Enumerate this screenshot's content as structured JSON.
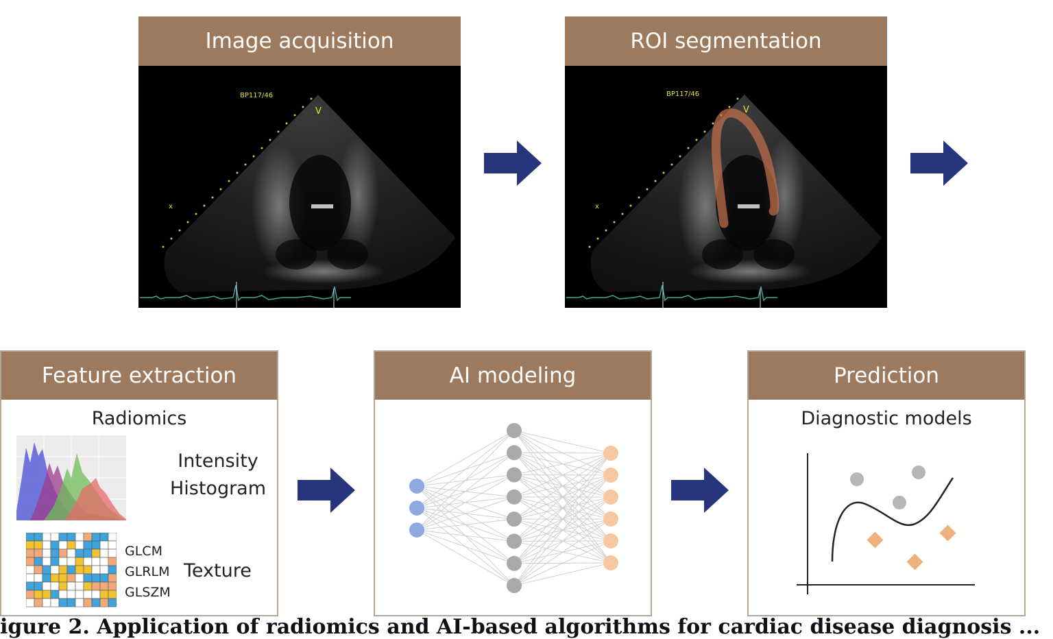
{
  "steps": {
    "image_acquisition": {
      "title": "Image acquisition",
      "bp_text": "BP117/46",
      "marker_v": "V",
      "marker_x": "x"
    },
    "roi_segmentation": {
      "title": "ROI segmentation",
      "bp_text": "BP117/46",
      "marker_v": "V",
      "marker_x": "x"
    },
    "feature_extraction": {
      "title": "Feature extraction",
      "subtitle": "Radiomics",
      "intensity_label_1": "Intensity",
      "intensity_label_2": "Histogram",
      "texture_methods": [
        "GLCM",
        "GLRLM",
        "GLSZM"
      ],
      "texture_label": "Texture"
    },
    "ai_modeling": {
      "title": "AI modeling",
      "network": {
        "input_nodes": 3,
        "hidden_nodes": 8,
        "output_nodes": 6
      }
    },
    "prediction": {
      "title": "Prediction",
      "subtitle": "Diagnostic models"
    }
  },
  "caption": "igure 2. Application of radiomics and AI-based algorithms for cardiac disease diagnosis ...",
  "colors": {
    "header_bg": "#9d7a5d",
    "header_text": "#ffffff",
    "panel_border": "#b4a493",
    "arrow": "#26357c",
    "roi_overlay": "#c8724e",
    "input_node": "#8fa8de",
    "hidden_node": "#a9a9a9",
    "output_node": "#f5c7a2",
    "diamond": "#f0b07c",
    "ecg_trace": "#3fa7a0"
  },
  "icons": [
    "arrow-right-icon",
    "histogram-icon",
    "texture-grid-icon",
    "neural-network-icon",
    "scatter-plot-icon"
  ]
}
